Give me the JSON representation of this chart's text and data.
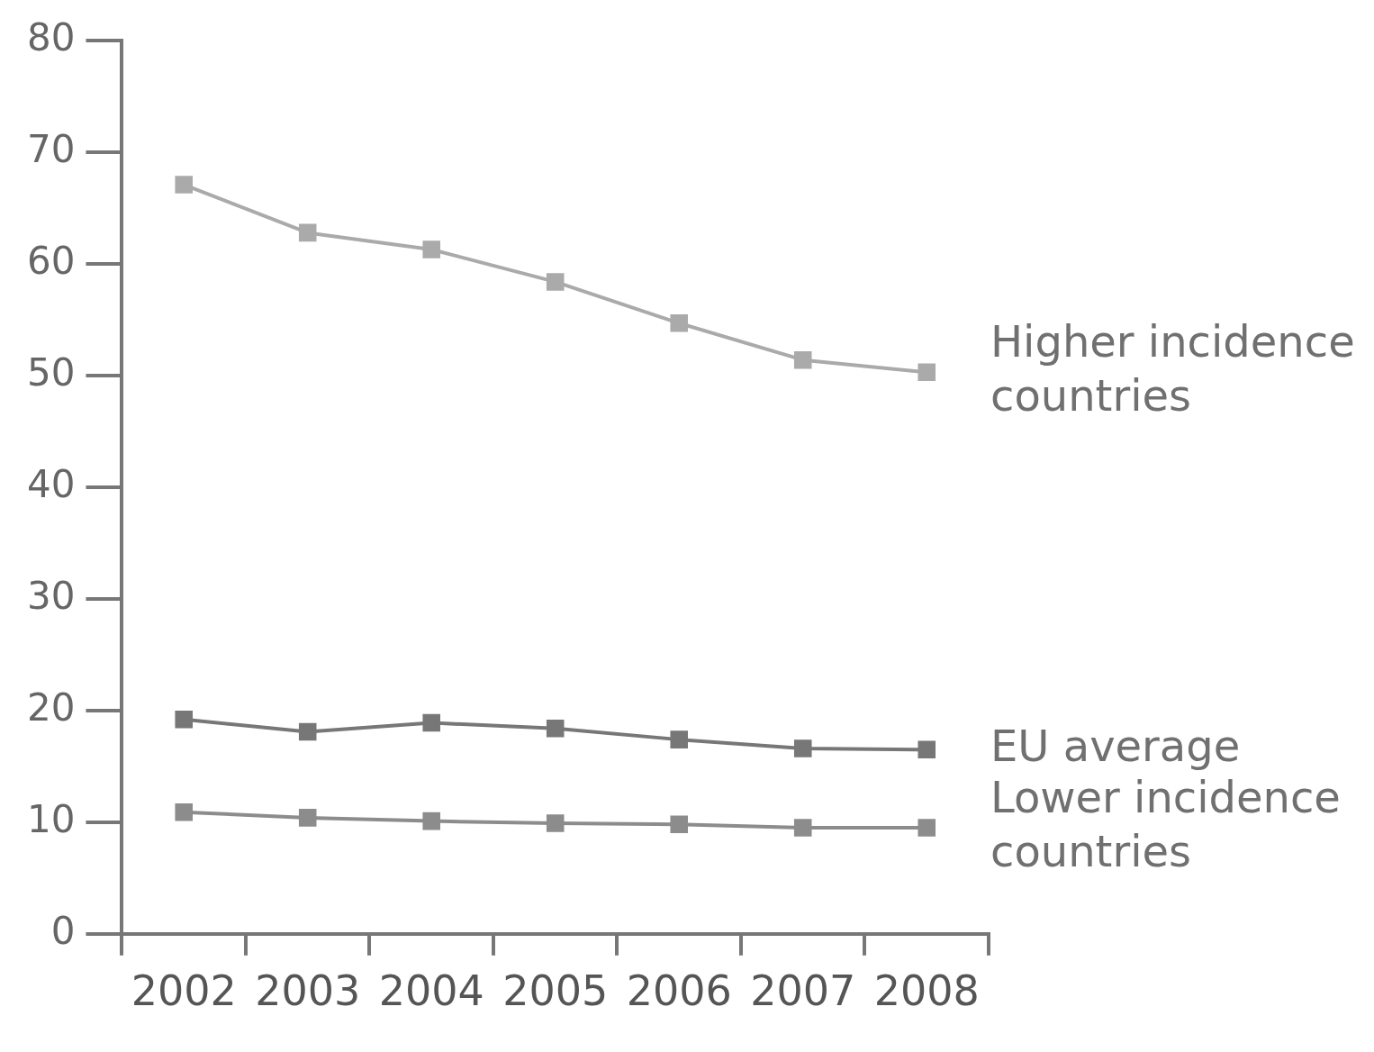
{
  "chart_data": {
    "type": "line",
    "categories": [
      "2002",
      "2003",
      "2004",
      "2005",
      "2006",
      "2007",
      "2008"
    ],
    "series": [
      {
        "name": "Higher incidence countries",
        "color": "#aaaaaa",
        "values": [
          67.1,
          62.8,
          61.3,
          58.4,
          54.7,
          51.4,
          50.3
        ]
      },
      {
        "name": "EU average",
        "color": "#777777",
        "values": [
          19.2,
          18.1,
          18.9,
          18.4,
          17.4,
          16.6,
          16.5
        ]
      },
      {
        "name": "Lower incidence countries",
        "color": "#8c8c8c",
        "values": [
          10.9,
          10.4,
          10.1,
          9.9,
          9.8,
          9.5,
          9.5
        ]
      }
    ],
    "ylim": [
      0,
      80
    ],
    "yticks": [
      0,
      10,
      20,
      30,
      40,
      50,
      60,
      70,
      80
    ],
    "grid": false,
    "legend": false,
    "marker": "square",
    "line_style": "solid"
  }
}
